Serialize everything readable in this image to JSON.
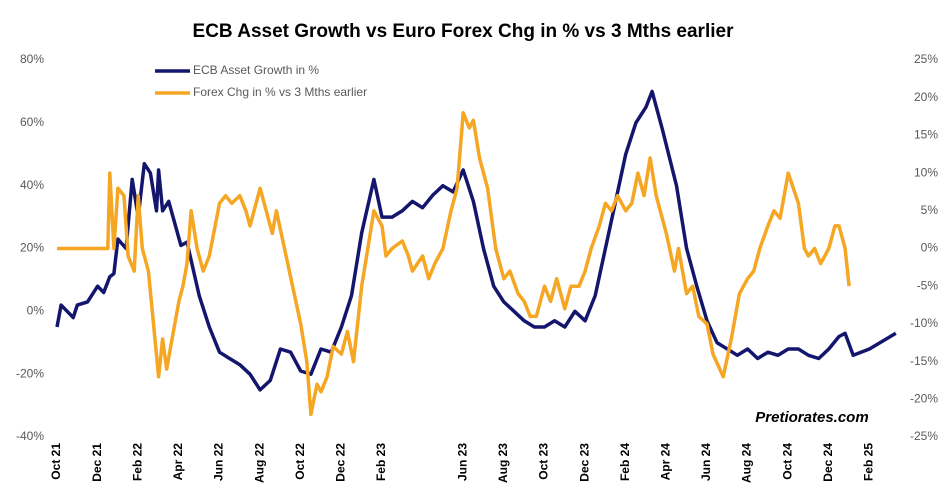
{
  "chart_data": {
    "type": "line",
    "title": "ECB Asset Growth vs Euro Forex Chg in % vs 3 Mths earlier",
    "annotation": "Pretiorates.com",
    "xlim": [
      0,
      41.8
    ],
    "xticks": [
      {
        "value": 0,
        "label": "Oct 21"
      },
      {
        "value": 2,
        "label": "Dec 21"
      },
      {
        "value": 4,
        "label": "Feb 22"
      },
      {
        "value": 6,
        "label": "Apr 22"
      },
      {
        "value": 8,
        "label": "Jun 22"
      },
      {
        "value": 10,
        "label": "Aug 22"
      },
      {
        "value": 12,
        "label": "Oct 22"
      },
      {
        "value": 14,
        "label": "Dec 22"
      },
      {
        "value": 16,
        "label": "Feb 23"
      },
      {
        "value": 20,
        "label": "Jun 23"
      },
      {
        "value": 22,
        "label": "Aug 23"
      },
      {
        "value": 24,
        "label": "Oct 23"
      },
      {
        "value": 26,
        "label": "Dec 23"
      },
      {
        "value": 28,
        "label": "Feb 24"
      },
      {
        "value": 30,
        "label": "Apr 24"
      },
      {
        "value": 32,
        "label": "Jun 24"
      },
      {
        "value": 34,
        "label": "Aug 24"
      },
      {
        "value": 36,
        "label": "Oct 24"
      },
      {
        "value": 38,
        "label": "Dec 24"
      },
      {
        "value": 40,
        "label": "Feb 25"
      }
    ],
    "ylim": [
      -40,
      80
    ],
    "yticks": [
      {
        "value": 80,
        "label": "80%"
      },
      {
        "value": 60,
        "label": "60%"
      },
      {
        "value": 40,
        "label": "40%"
      },
      {
        "value": 20,
        "label": "20%"
      },
      {
        "value": 0,
        "label": "0%"
      },
      {
        "value": -20,
        "label": "-20%"
      },
      {
        "value": -40,
        "label": "-40%"
      }
    ],
    "y2lim": [
      -25,
      25
    ],
    "y2ticks": [
      {
        "value": 25,
        "label": "25%"
      },
      {
        "value": 20,
        "label": "20%"
      },
      {
        "value": 15,
        "label": "15%"
      },
      {
        "value": 10,
        "label": "10%"
      },
      {
        "value": 5,
        "label": "5%"
      },
      {
        "value": 0,
        "label": "0%"
      },
      {
        "value": -5,
        "label": "-5%"
      },
      {
        "value": -10,
        "label": "-10%"
      },
      {
        "value": -15,
        "label": "-15%"
      },
      {
        "value": -20,
        "label": "-20%"
      },
      {
        "value": -25,
        "label": "-25%"
      }
    ],
    "grid": false,
    "legend": "top-left",
    "series": [
      {
        "name": "ECB Asset Growth in %",
        "color": "#14166e",
        "axis": "y",
        "x": [
          0,
          0.2,
          0.5,
          0.8,
          1,
          1.5,
          2,
          2.3,
          2.6,
          2.8,
          3,
          3.4,
          3.7,
          4,
          4.3,
          4.6,
          4.9,
          5,
          5.2,
          5.5,
          5.8,
          6.1,
          6.4,
          7,
          7.5,
          8,
          8.5,
          9,
          9.5,
          10,
          10.5,
          11,
          11.5,
          12,
          12.5,
          13,
          13.5,
          14,
          14.5,
          15,
          15.6,
          16,
          16.5,
          17,
          17.5,
          18,
          18.5,
          19,
          19.5,
          20,
          20.5,
          21,
          21.5,
          22,
          22.5,
          23,
          23.5,
          24,
          24.5,
          25,
          25.5,
          26,
          26.5,
          27,
          27.5,
          28,
          28.5,
          29,
          29.3,
          29.8,
          30.5,
          31,
          31.5,
          32,
          32.5,
          33,
          33.5,
          34,
          34.5,
          35,
          35.5,
          36,
          36.5,
          37,
          37.5,
          38,
          38.5,
          38.8,
          39.2,
          40,
          41.3
        ],
        "values": [
          -5,
          2,
          0,
          -2,
          2,
          3,
          8,
          6,
          11,
          12,
          23,
          20,
          42,
          30,
          47,
          44,
          32,
          45,
          32,
          35,
          28,
          21,
          22,
          5,
          -5,
          -13,
          -15,
          -17,
          -20,
          -25,
          -22,
          -12,
          -13,
          -19,
          -20,
          -12,
          -13,
          -5,
          5,
          25,
          42,
          30,
          30,
          32,
          35,
          33,
          37,
          40,
          38,
          45,
          35,
          20,
          8,
          3,
          0,
          -3,
          -5,
          -5,
          -3,
          -5,
          0,
          -3,
          5,
          20,
          35,
          50,
          60,
          65,
          70,
          58,
          40,
          20,
          8,
          -3,
          -10,
          -12,
          -14,
          -12,
          -15,
          -13,
          -14,
          -12,
          -12,
          -14,
          -15,
          -12,
          -8,
          -7,
          -14,
          -12,
          -7
        ]
      },
      {
        "name": "Forex Chg in % vs 3 Mths earlier",
        "color": "#f5a623",
        "axis": "y2",
        "x": [
          0,
          2.5,
          2.6,
          2.8,
          3,
          3.3,
          3.5,
          3.8,
          4,
          4.2,
          4.5,
          5,
          5.2,
          5.4,
          5.6,
          6,
          6.2,
          6.4,
          6.6,
          6.9,
          7.2,
          7.5,
          8,
          8.3,
          8.6,
          9,
          9.3,
          9.5,
          10,
          10.3,
          10.6,
          10.8,
          11.2,
          11.6,
          12,
          12.3,
          12.5,
          12.8,
          13,
          13.3,
          13.6,
          14,
          14.3,
          14.6,
          15,
          15.3,
          15.6,
          16,
          16.2,
          16.5,
          17,
          17.3,
          17.5,
          18,
          18.3,
          18.6,
          19,
          19.4,
          19.7,
          20,
          20.3,
          20.5,
          20.8,
          21.2,
          21.6,
          22,
          22.3,
          22.7,
          23,
          23.3,
          23.6,
          24,
          24.3,
          24.6,
          25,
          25.3,
          25.7,
          26,
          26.3,
          26.7,
          27,
          27.3,
          27.6,
          28,
          28.3,
          28.6,
          28.9,
          29.2,
          29.5,
          30,
          30.4,
          30.6,
          31,
          31.3,
          31.6,
          32,
          32.3,
          32.8,
          33.2,
          33.6,
          34,
          34.3,
          34.6,
          35,
          35.3,
          35.6,
          36,
          36.5,
          36.8,
          37,
          37.3,
          37.6,
          38,
          38.3,
          38.5,
          38.8,
          39
        ],
        "values": [
          0,
          0,
          10,
          0,
          8,
          7,
          -1,
          -3,
          7,
          0,
          -3,
          -17,
          -12,
          -16,
          -13,
          -7,
          -5,
          -2,
          5,
          0,
          -3,
          -1,
          6,
          7,
          6,
          7,
          5,
          3,
          8,
          5,
          2,
          5,
          0,
          -5,
          -10,
          -15,
          -22,
          -18,
          -19,
          -17,
          -13,
          -14,
          -11,
          -15,
          -5,
          0,
          5,
          3,
          -1,
          0,
          1,
          -1,
          -3,
          -1,
          -4,
          -2,
          0,
          5,
          8,
          18,
          16,
          17,
          12,
          8,
          0,
          -4,
          -3,
          -6,
          -7,
          -9,
          -9,
          -5,
          -7,
          -4,
          -8,
          -5,
          -5,
          -3,
          0,
          3,
          6,
          5,
          7,
          5,
          6,
          10,
          7,
          12,
          7,
          2,
          -3,
          0,
          -6,
          -5,
          -9,
          -10,
          -14,
          -17,
          -12,
          -6,
          -4,
          -3,
          0,
          3,
          5,
          4,
          10,
          6,
          0,
          -1,
          0,
          -2,
          0,
          3,
          3,
          0,
          -5
        ]
      }
    ]
  }
}
